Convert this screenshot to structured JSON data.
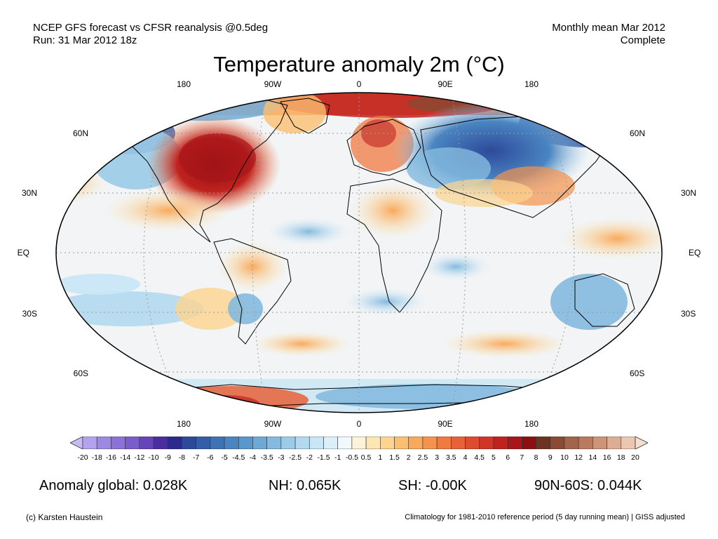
{
  "header": {
    "line1": "NCEP GFS forecast vs CFSR reanalysis @0.5deg",
    "line2": "Run: 31 Mar 2012 18z",
    "period": "Monthly mean Mar 2012",
    "status": "Complete"
  },
  "title": "Temperature anomaly 2m (°C)",
  "map": {
    "projection": "Robinson",
    "lon_labels": [
      "180",
      "90W",
      "0",
      "90E",
      "180"
    ],
    "lat_labels_left": [
      "60N",
      "30N",
      "EQ",
      "30S",
      "60S"
    ],
    "lat_labels_right": [
      "60N",
      "30N",
      "EQ",
      "30S",
      "60S"
    ],
    "anomalies": [
      {
        "region": "Eastern North America",
        "level": "strong-warm",
        "color": "#b2182b"
      },
      {
        "region": "Arctic / Greenland",
        "level": "warm",
        "color": "#ef6f4f"
      },
      {
        "region": "Siberia",
        "level": "cold",
        "color": "#4a86c2"
      },
      {
        "region": "Western North America",
        "level": "cold",
        "color": "#7ab0d8"
      },
      {
        "region": "Antarctic Peninsula",
        "level": "warm",
        "color": "#e9593f"
      },
      {
        "region": "Australia",
        "level": "cool",
        "color": "#8ec4e6"
      }
    ]
  },
  "colorbar": {
    "labels": [
      "-20",
      "-18",
      "-16",
      "-14",
      "-12",
      "-10",
      "-9",
      "-8",
      "-7",
      "-6",
      "-5",
      "-4.5",
      "-4",
      "-3.5",
      "-3",
      "-2.5",
      "-2",
      "-1.5",
      "-1",
      "-0.5",
      "0.5",
      "1",
      "1.5",
      "2",
      "2.5",
      "3",
      "3.5",
      "4",
      "4.5",
      "5",
      "6",
      "7",
      "8",
      "9",
      "10",
      "12",
      "14",
      "16",
      "18",
      "20"
    ],
    "colors": [
      "#c7baf2",
      "#b3a3ec",
      "#9d89e2",
      "#8a72d8",
      "#7a5ccc",
      "#6645bb",
      "#4a2ea0",
      "#2c2a8c",
      "#2d4a9a",
      "#345ea8",
      "#3f72b5",
      "#4a85c1",
      "#5a97cb",
      "#6ea9d5",
      "#84badf",
      "#9bcbe8",
      "#b2d9ef",
      "#c8e6f5",
      "#ddf0fa",
      "#f2f9fc",
      "#fdf3d8",
      "#fde6b2",
      "#fcd48f",
      "#fbbf72",
      "#f9a95c",
      "#f5924c",
      "#f07a41",
      "#e96138",
      "#df4a30",
      "#d23528",
      "#c0221f",
      "#a8151a",
      "#8c0f12",
      "#6e3321",
      "#8a4a33",
      "#a2644a",
      "#b87b60",
      "#cc9479",
      "#dcac93",
      "#ebc7b2",
      "#f5ddd0"
    ]
  },
  "stats": {
    "global": "Anomaly global: 0.028K",
    "nh": "NH: 0.065K",
    "sh": "SH: -0.00K",
    "arctic": "90N-60S: 0.044K"
  },
  "footer": {
    "credit": "(c) Karsten Haustein",
    "note": "Climatology for 1981-2010 reference period (5 day running mean) | GISS adjusted"
  }
}
